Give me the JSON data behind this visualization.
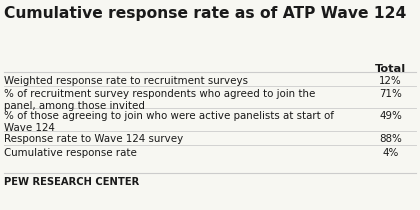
{
  "title": "Cumulative response rate as of ATP Wave 124",
  "col_header": "Total",
  "rows": [
    {
      "label": "Weighted response rate to recruitment surveys",
      "value": "12%"
    },
    {
      "label": "% of recruitment survey respondents who agreed to join the\npanel, among those invited",
      "value": "71%"
    },
    {
      "label": "% of those agreeing to join who were active panelists at start of\nWave 124",
      "value": "49%"
    },
    {
      "label": "Response rate to Wave 124 survey",
      "value": "88%"
    },
    {
      "label": "Cumulative response rate",
      "value": "4%"
    }
  ],
  "footer": "PEW RESEARCH CENTER",
  "bg_color": "#f7f7f2",
  "title_color": "#1a1a1a",
  "text_color": "#1a1a1a",
  "header_color": "#1a1a1a",
  "line_color": "#cccccc",
  "footer_color": "#1a1a1a",
  "title_fontsize": 11.2,
  "body_fontsize": 7.4,
  "header_fontsize": 8.2,
  "footer_fontsize": 7.2
}
